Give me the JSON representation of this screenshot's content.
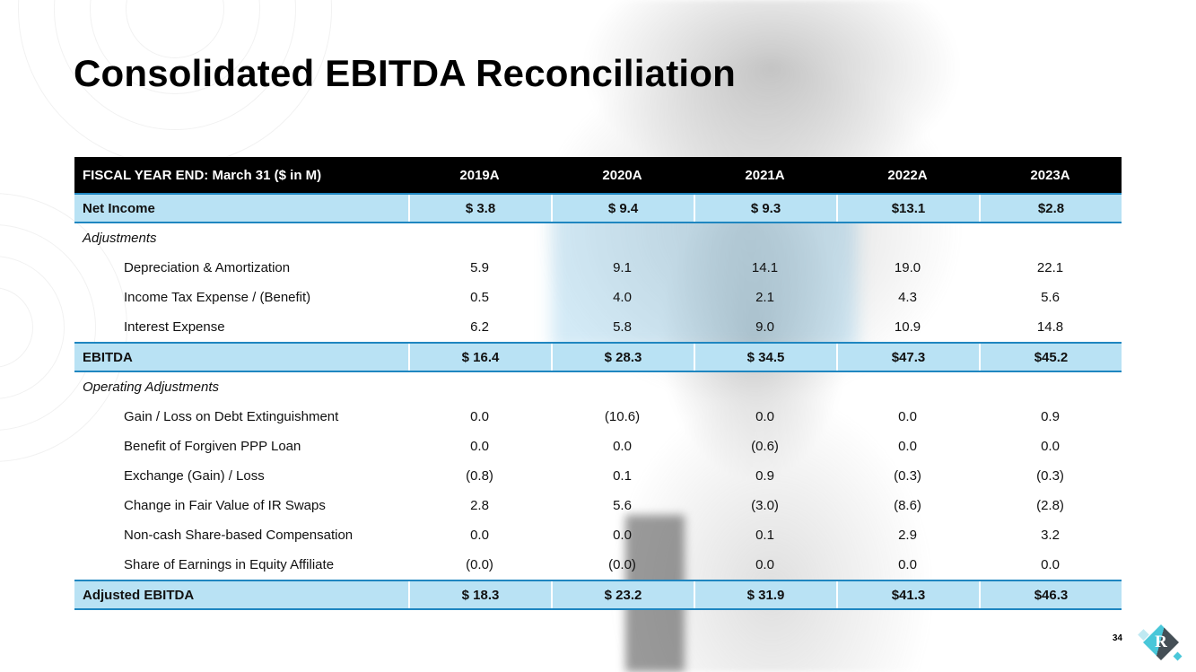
{
  "slide": {
    "title": "Consolidated EBITDA Reconciliation",
    "page_number": "34",
    "logo_letter": "R"
  },
  "table": {
    "header": {
      "label": "FISCAL YEAR END: March 31 ($ in M)",
      "columns": [
        "2019A",
        "2020A",
        "2021A",
        "2022A",
        "2023A"
      ]
    },
    "rows": [
      {
        "label": "Net Income",
        "type": "highlight",
        "values": [
          "$ 3.8",
          "$ 9.4",
          "$ 9.3",
          "$13.1",
          "$2.8"
        ]
      },
      {
        "label": "Adjustments",
        "type": "section",
        "values": [
          "",
          "",
          "",
          "",
          ""
        ]
      },
      {
        "label": "Depreciation & Amortization",
        "type": "detail",
        "values": [
          "5.9",
          "9.1",
          "14.1",
          "19.0",
          "22.1"
        ]
      },
      {
        "label": "Income Tax Expense / (Benefit)",
        "type": "detail",
        "values": [
          "0.5",
          "4.0",
          "2.1",
          "4.3",
          "5.6"
        ]
      },
      {
        "label": "Interest Expense",
        "type": "detail",
        "values": [
          "6.2",
          "5.8",
          "9.0",
          "10.9",
          "14.8"
        ]
      },
      {
        "label": "EBITDA",
        "type": "highlight",
        "values": [
          "$ 16.4",
          "$ 28.3",
          "$ 34.5",
          "$47.3",
          "$45.2"
        ]
      },
      {
        "label": "Operating Adjustments",
        "type": "section",
        "values": [
          "",
          "",
          "",
          "",
          ""
        ]
      },
      {
        "label": "Gain / Loss on Debt Extinguishment",
        "type": "detail",
        "values": [
          "0.0",
          "(10.6)",
          "0.0",
          "0.0",
          "0.9"
        ]
      },
      {
        "label": "Benefit of Forgiven PPP Loan",
        "type": "detail",
        "values": [
          "0.0",
          "0.0",
          "(0.6)",
          "0.0",
          "0.0"
        ]
      },
      {
        "label": "Exchange (Gain) / Loss",
        "type": "detail",
        "values": [
          "(0.8)",
          "0.1",
          "0.9",
          "(0.3)",
          "(0.3)"
        ]
      },
      {
        "label": "Change in Fair Value of IR Swaps",
        "type": "detail",
        "values": [
          "2.8",
          "5.6",
          "(3.0)",
          "(8.6)",
          "(2.8)"
        ]
      },
      {
        "label": "Non-cash Share-based Compensation",
        "type": "detail",
        "values": [
          "0.0",
          "0.0",
          "0.1",
          "2.9",
          "3.2"
        ]
      },
      {
        "label": "Share of Earnings in Equity Affiliate",
        "type": "detail",
        "values": [
          "(0.0)",
          "(0.0)",
          "0.0",
          "0.0",
          "0.0"
        ]
      },
      {
        "label": "Adjusted EBITDA",
        "type": "highlight",
        "values": [
          "$ 18.3",
          "$ 23.2",
          "$ 31.9",
          "$41.3",
          "$46.3"
        ]
      }
    ]
  },
  "colors": {
    "header_bg": "#000000",
    "highlight_bg": "#b9e2f4",
    "highlight_border": "#1f86c0",
    "logo_teal": "#49c7d9",
    "logo_dark": "#454f56"
  }
}
